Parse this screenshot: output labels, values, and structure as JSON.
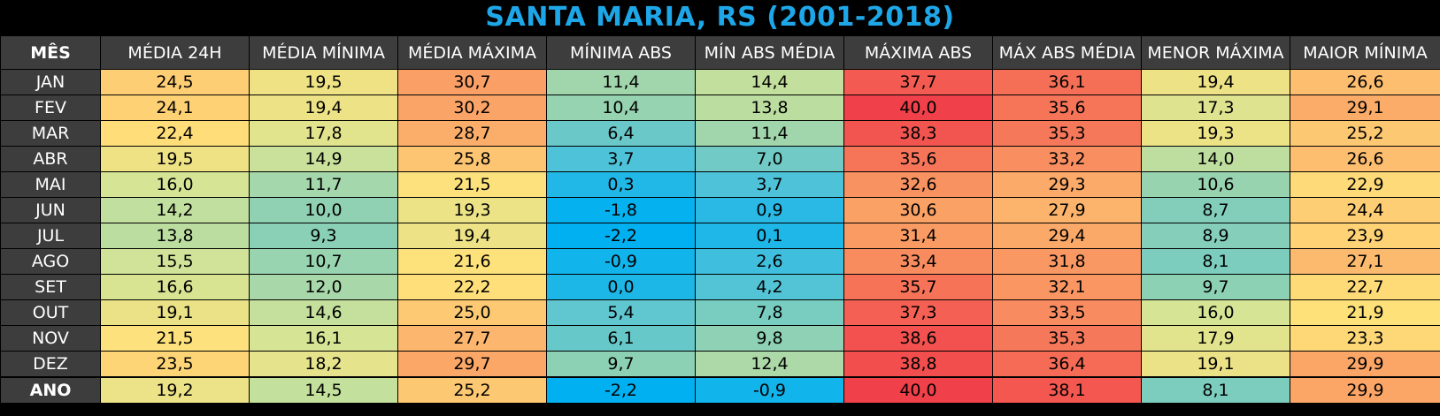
{
  "chart_data": {
    "type": "table",
    "title": "SANTA MARIA, RS (2001-2018)",
    "columns": [
      "MÊS",
      "MÉDIA 24H",
      "MÉDIA MÍNIMA",
      "MÉDIA MÁXIMA",
      "MÍNIMA ABS",
      "MÍN ABS MÉDIA",
      "MÁXIMA ABS",
      "MÁX ABS MÉDIA",
      "MENOR MÁXIMA",
      "MAIOR MÍNIMA"
    ],
    "rows": [
      [
        "JAN",
        "24,5",
        "19,5",
        "30,7",
        "11,4",
        "14,4",
        "37,7",
        "36,1",
        "19,4",
        "26,6"
      ],
      [
        "FEV",
        "24,1",
        "19,4",
        "30,2",
        "10,4",
        "13,8",
        "40,0",
        "35,6",
        "17,3",
        "29,1"
      ],
      [
        "MAR",
        "22,4",
        "17,8",
        "28,7",
        "6,4",
        "11,4",
        "38,3",
        "35,3",
        "19,3",
        "25,2"
      ],
      [
        "ABR",
        "19,5",
        "14,9",
        "25,8",
        "3,7",
        "7,0",
        "35,6",
        "33,2",
        "14,0",
        "26,6"
      ],
      [
        "MAI",
        "16,0",
        "11,7",
        "21,5",
        "0,3",
        "3,7",
        "32,6",
        "29,3",
        "10,6",
        "22,9"
      ],
      [
        "JUN",
        "14,2",
        "10,0",
        "19,3",
        "-1,8",
        "0,9",
        "30,6",
        "27,9",
        "8,7",
        "24,4"
      ],
      [
        "JUL",
        "13,8",
        "9,3",
        "19,4",
        "-2,2",
        "0,1",
        "31,4",
        "29,4",
        "8,9",
        "23,9"
      ],
      [
        "AGO",
        "15,5",
        "10,7",
        "21,6",
        "-0,9",
        "2,6",
        "33,4",
        "31,8",
        "8,1",
        "27,1"
      ],
      [
        "SET",
        "16,6",
        "12,0",
        "22,2",
        "0,0",
        "4,2",
        "35,7",
        "32,1",
        "9,7",
        "22,7"
      ],
      [
        "OUT",
        "19,1",
        "14,6",
        "25,0",
        "5,4",
        "7,8",
        "37,3",
        "33,5",
        "16,0",
        "21,9"
      ],
      [
        "NOV",
        "21,5",
        "16,1",
        "27,7",
        "6,1",
        "9,8",
        "38,6",
        "35,3",
        "17,9",
        "23,3"
      ],
      [
        "DEZ",
        "23,5",
        "18,2",
        "29,7",
        "9,7",
        "12,4",
        "38,8",
        "36,4",
        "19,1",
        "29,9"
      ]
    ],
    "annual_row": [
      "ANO",
      "19,2",
      "14,5",
      "25,2",
      "-2,2",
      "-0,9",
      "40,0",
      "38,1",
      "8,1",
      "29,9"
    ],
    "color_scale": {
      "low": -2.2,
      "high": 40.0,
      "stops": [
        "#00b0f0",
        "#4fc2d8",
        "#8fd1b4",
        "#d4e496",
        "#ffe17a",
        "#fcb46c",
        "#f8885e",
        "#f0404a"
      ]
    },
    "colors": {
      "title": "#1ea7e8",
      "header_bg": "#3d3d3d",
      "header_text": "#ffffff",
      "background": "#000000"
    }
  }
}
